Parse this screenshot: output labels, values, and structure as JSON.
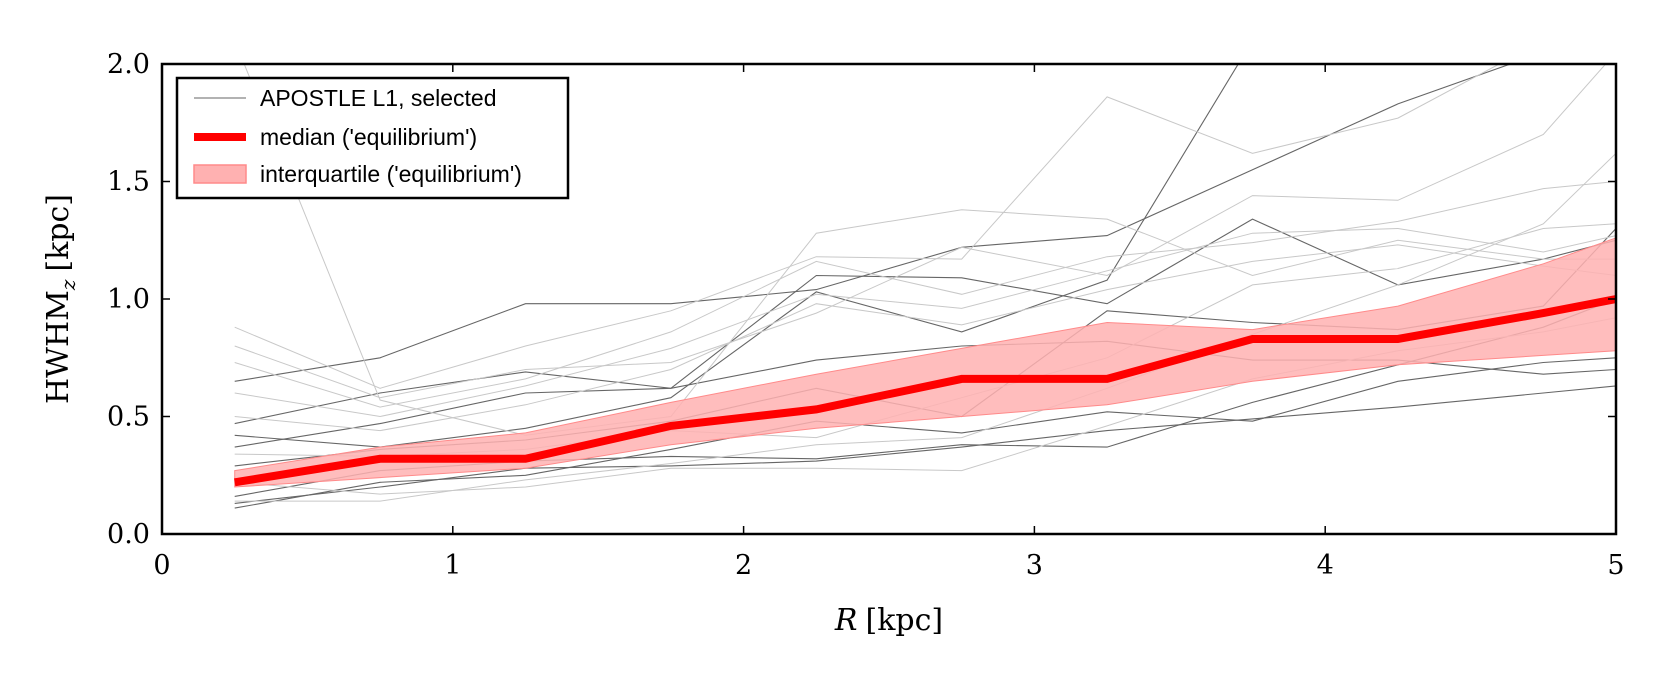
{
  "chart_data": {
    "type": "line",
    "title": "",
    "xlabel_var": "R",
    "xlabel_unit": "[kpc]",
    "ylabel_main": "HWHM",
    "ylabel_sub": "z",
    "ylabel_unit": "[kpc]",
    "xlim": [
      0,
      5
    ],
    "ylim": [
      0,
      2
    ],
    "xticks": [
      0,
      1,
      2,
      3,
      4,
      5
    ],
    "xtick_labels": [
      "0",
      "1",
      "2",
      "3",
      "4",
      "5"
    ],
    "yticks": [
      0,
      0.5,
      1,
      1.5,
      2
    ],
    "ytick_labels": [
      "0.0",
      "0.5",
      "1.0",
      "1.5",
      "2.0"
    ],
    "grid": false,
    "legend_position": "top-left",
    "legend": [
      {
        "label": "APOSTLE L1, selected",
        "style": "thin-line"
      },
      {
        "label": "median ('equilibrium')",
        "style": "thick-line"
      },
      {
        "label": "interquartile ('equilibrium')",
        "style": "band"
      }
    ],
    "x": [
      0.25,
      0.75,
      1.25,
      1.75,
      2.25,
      2.75,
      3.25,
      3.75,
      4.25,
      4.75,
      5.0
    ],
    "median": [
      0.22,
      0.32,
      0.32,
      0.46,
      0.53,
      0.66,
      0.66,
      0.83,
      0.83,
      0.94,
      1.0
    ],
    "q_lower": [
      0.2,
      0.24,
      0.28,
      0.38,
      0.45,
      0.5,
      0.55,
      0.65,
      0.72,
      0.76,
      0.78
    ],
    "q_upper": [
      0.27,
      0.37,
      0.43,
      0.56,
      0.68,
      0.79,
      0.9,
      0.87,
      0.97,
      1.15,
      1.26
    ],
    "colors": {
      "median": "#ff0000",
      "band": "#ffb1b1",
      "sim_dark": "#666666",
      "sim_light": "#c8c8c8"
    },
    "series": [
      {
        "shade": "dark",
        "values": [
          0.65,
          0.75,
          0.98,
          0.98,
          1.04,
          1.22,
          1.27,
          1.55,
          1.83,
          2.05,
          2.1
        ]
      },
      {
        "shade": "dark",
        "values": [
          0.47,
          0.6,
          0.69,
          0.62,
          1.1,
          1.09,
          0.98,
          1.34,
          1.06,
          1.17,
          1.25
        ]
      },
      {
        "shade": "dark",
        "values": [
          0.42,
          0.37,
          0.45,
          0.58,
          1.03,
          0.86,
          1.08,
          2.1,
          2.1,
          2.1,
          2.1
        ]
      },
      {
        "shade": "dark",
        "values": [
          0.37,
          0.47,
          0.6,
          0.62,
          0.74,
          0.8,
          0.82,
          0.74,
          0.74,
          0.68,
          0.7
        ]
      },
      {
        "shade": "dark",
        "values": [
          0.29,
          0.36,
          0.4,
          0.48,
          0.62,
          0.5,
          0.95,
          0.9,
          0.87,
          0.97,
          1.3
        ]
      },
      {
        "shade": "dark",
        "values": [
          0.16,
          0.27,
          0.31,
          0.33,
          0.32,
          0.38,
          0.37,
          0.56,
          0.72,
          0.88,
          1.0
        ]
      },
      {
        "shade": "dark",
        "values": [
          0.13,
          0.2,
          0.28,
          0.29,
          0.31,
          0.37,
          0.44,
          0.49,
          0.54,
          0.6,
          0.63
        ]
      },
      {
        "shade": "dark",
        "values": [
          0.11,
          0.22,
          0.25,
          0.36,
          0.48,
          0.43,
          0.52,
          0.48,
          0.65,
          0.73,
          0.75
        ]
      },
      {
        "shade": "light",
        "values": [
          2.1,
          0.57,
          0.42,
          0.5,
          1.28,
          1.38,
          1.34,
          1.1,
          1.25,
          1.17,
          1.17
        ]
      },
      {
        "shade": "light",
        "values": [
          0.88,
          0.62,
          0.8,
          0.95,
          1.18,
          1.17,
          1.86,
          1.62,
          1.77,
          2.1,
          2.1
        ]
      },
      {
        "shade": "light",
        "values": [
          0.8,
          0.58,
          0.7,
          0.73,
          0.94,
          1.22,
          1.1,
          1.44,
          1.42,
          1.7,
          2.05
        ]
      },
      {
        "shade": "light",
        "values": [
          0.73,
          0.54,
          0.66,
          0.86,
          1.16,
          1.02,
          1.18,
          1.24,
          1.33,
          1.47,
          1.5
        ]
      },
      {
        "shade": "light",
        "values": [
          0.6,
          0.5,
          0.63,
          0.79,
          1.02,
          0.96,
          1.12,
          1.28,
          1.3,
          1.2,
          1.27
        ]
      },
      {
        "shade": "light",
        "values": [
          0.5,
          0.44,
          0.55,
          0.7,
          0.98,
          0.89,
          1.04,
          1.16,
          1.23,
          1.14,
          1.1
        ]
      },
      {
        "shade": "light",
        "values": [
          0.34,
          0.33,
          0.36,
          0.44,
          0.41,
          0.58,
          0.75,
          1.06,
          1.13,
          1.3,
          1.32
        ]
      },
      {
        "shade": "light",
        "values": [
          0.22,
          0.17,
          0.2,
          0.28,
          0.28,
          0.27,
          0.46,
          0.66,
          0.78,
          0.86,
          0.92
        ]
      },
      {
        "shade": "light",
        "values": [
          0.14,
          0.14,
          0.23,
          0.3,
          0.38,
          0.41,
          0.62,
          0.85,
          1.06,
          1.32,
          1.62
        ]
      }
    ]
  }
}
